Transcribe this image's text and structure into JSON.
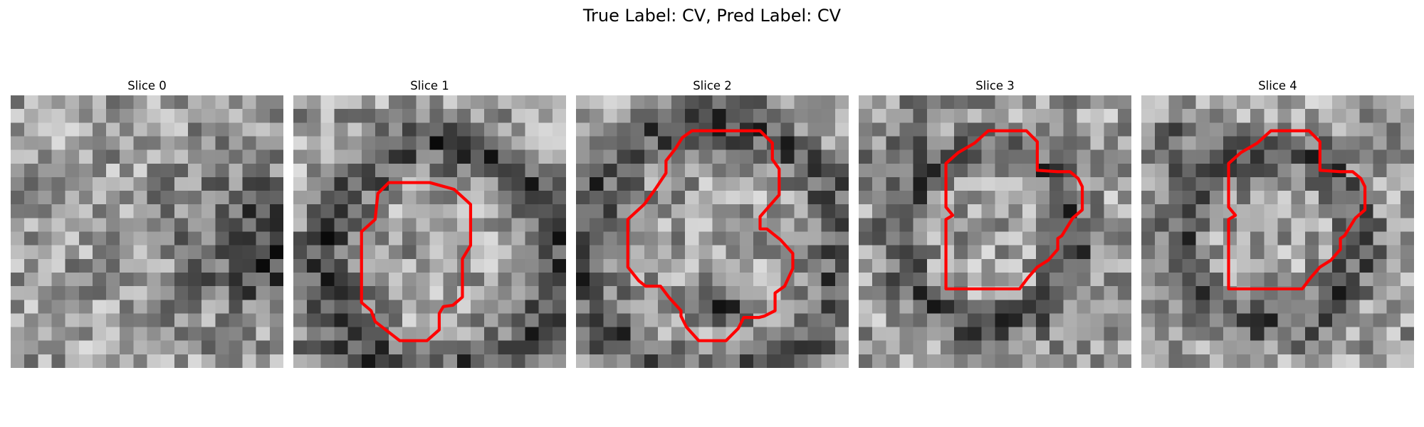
{
  "title": "True Label: CV, Pred Label: CV",
  "colors": {
    "contour": "#ff0000",
    "background": "#ffffff"
  },
  "panels": [
    {
      "title": "Slice 0",
      "dark_rings": [],
      "dark_blobs": [
        {
          "cx": 17.5,
          "cy": 10.5,
          "r": 5.5,
          "strength": 0.3
        },
        {
          "cx": 20.0,
          "cy": 12.5,
          "r": 3.0,
          "strength": 0.15
        }
      ],
      "contour": []
    },
    {
      "title": "Slice 1",
      "dark_rings": [
        {
          "cx": 11.0,
          "cy": 12.0,
          "r": 8.5,
          "width": 1.8,
          "strength": 0.35
        }
      ],
      "dark_blobs": [
        {
          "cx": 1.0,
          "cy": 21.5,
          "r": 3.0,
          "strength": 0.25
        }
      ],
      "contour": [
        [
          8.0,
          6.4
        ],
        [
          10.0,
          6.4
        ],
        [
          11.8,
          6.9
        ],
        [
          13.0,
          8.0
        ],
        [
          13.0,
          11.0
        ],
        [
          12.4,
          12.0
        ],
        [
          12.4,
          14.8
        ],
        [
          11.7,
          15.4
        ],
        [
          11.0,
          15.5
        ],
        [
          10.7,
          16.0
        ],
        [
          10.7,
          17.2
        ],
        [
          9.8,
          18.0
        ],
        [
          7.8,
          18.0
        ],
        [
          6.0,
          16.6
        ],
        [
          5.7,
          15.8
        ],
        [
          5.0,
          15.2
        ],
        [
          5.0,
          10.0
        ],
        [
          6.0,
          9.1
        ],
        [
          6.2,
          7.2
        ],
        [
          7.0,
          6.4
        ]
      ]
    },
    {
      "title": "Slice 2",
      "dark_rings": [
        {
          "cx": 10.0,
          "cy": 11.5,
          "r": 9.5,
          "width": 1.9,
          "strength": 0.3
        }
      ],
      "dark_blobs": [
        {
          "cx": 11.0,
          "cy": 15.5,
          "r": 1.5,
          "strength": 0.35
        }
      ],
      "contour": [
        [
          8.5,
          2.6
        ],
        [
          13.5,
          2.6
        ],
        [
          14.4,
          3.5
        ],
        [
          14.4,
          4.7
        ],
        [
          14.9,
          5.4
        ],
        [
          14.9,
          7.3
        ],
        [
          13.5,
          8.9
        ],
        [
          13.5,
          9.8
        ],
        [
          14.0,
          9.8
        ],
        [
          15.0,
          10.6
        ],
        [
          15.9,
          11.6
        ],
        [
          15.9,
          12.7
        ],
        [
          15.3,
          14.0
        ],
        [
          14.6,
          14.5
        ],
        [
          14.6,
          15.8
        ],
        [
          13.8,
          16.2
        ],
        [
          13.4,
          16.3
        ],
        [
          12.3,
          16.3
        ],
        [
          11.9,
          17.1
        ],
        [
          11.0,
          18.0
        ],
        [
          9.0,
          18.0
        ],
        [
          8.1,
          17.0
        ],
        [
          7.7,
          16.2
        ],
        [
          7.7,
          15.8
        ],
        [
          6.8,
          14.8
        ],
        [
          6.2,
          14.0
        ],
        [
          5.1,
          14.0
        ],
        [
          4.6,
          13.6
        ],
        [
          3.8,
          12.6
        ],
        [
          3.8,
          9.1
        ],
        [
          5.0,
          8.0
        ],
        [
          5.8,
          6.9
        ],
        [
          6.6,
          5.7
        ],
        [
          6.6,
          4.8
        ],
        [
          7.3,
          3.9
        ],
        [
          7.8,
          3.1
        ]
      ]
    },
    {
      "title": "Slice 3",
      "dark_rings": [
        {
          "cx": 9.5,
          "cy": 10.5,
          "r": 6.5,
          "width": 1.5,
          "strength": 0.3
        }
      ],
      "dark_blobs": [
        {
          "cx": 3.0,
          "cy": 3.5,
          "r": 2.5,
          "strength": 0.2
        }
      ],
      "contour": [
        [
          9.5,
          2.6
        ],
        [
          12.3,
          2.6
        ],
        [
          13.1,
          3.4
        ],
        [
          13.1,
          5.5
        ],
        [
          14.6,
          5.6
        ],
        [
          15.5,
          5.6
        ],
        [
          16.1,
          6.1
        ],
        [
          16.4,
          6.7
        ],
        [
          16.4,
          8.4
        ],
        [
          15.7,
          9.0
        ],
        [
          14.9,
          10.3
        ],
        [
          14.6,
          10.5
        ],
        [
          14.6,
          11.3
        ],
        [
          13.9,
          12.1
        ],
        [
          13.1,
          12.6
        ],
        [
          12.4,
          13.4
        ],
        [
          11.8,
          14.2
        ],
        [
          9.7,
          14.2
        ],
        [
          6.4,
          14.2
        ],
        [
          6.4,
          9.1
        ],
        [
          6.9,
          8.8
        ],
        [
          6.4,
          8.2
        ],
        [
          6.4,
          5.0
        ],
        [
          7.3,
          4.2
        ],
        [
          8.5,
          3.5
        ]
      ]
    },
    {
      "title": "Slice 4",
      "dark_rings": [
        {
          "cx": 9.5,
          "cy": 10.5,
          "r": 6.5,
          "width": 1.5,
          "strength": 0.3
        }
      ],
      "dark_blobs": [
        {
          "cx": 3.0,
          "cy": 3.5,
          "r": 2.5,
          "strength": 0.2
        }
      ],
      "contour": [
        [
          9.5,
          2.6
        ],
        [
          12.3,
          2.6
        ],
        [
          13.1,
          3.4
        ],
        [
          13.1,
          5.5
        ],
        [
          14.6,
          5.6
        ],
        [
          15.5,
          5.6
        ],
        [
          16.1,
          6.1
        ],
        [
          16.4,
          6.7
        ],
        [
          16.4,
          8.4
        ],
        [
          15.7,
          9.0
        ],
        [
          14.9,
          10.3
        ],
        [
          14.6,
          10.5
        ],
        [
          14.6,
          11.3
        ],
        [
          13.9,
          12.1
        ],
        [
          13.1,
          12.6
        ],
        [
          12.4,
          13.4
        ],
        [
          11.8,
          14.2
        ],
        [
          9.7,
          14.2
        ],
        [
          6.4,
          14.2
        ],
        [
          6.4,
          9.1
        ],
        [
          6.9,
          8.8
        ],
        [
          6.4,
          8.2
        ],
        [
          6.4,
          5.0
        ],
        [
          7.3,
          4.2
        ],
        [
          8.5,
          3.5
        ]
      ]
    }
  ]
}
